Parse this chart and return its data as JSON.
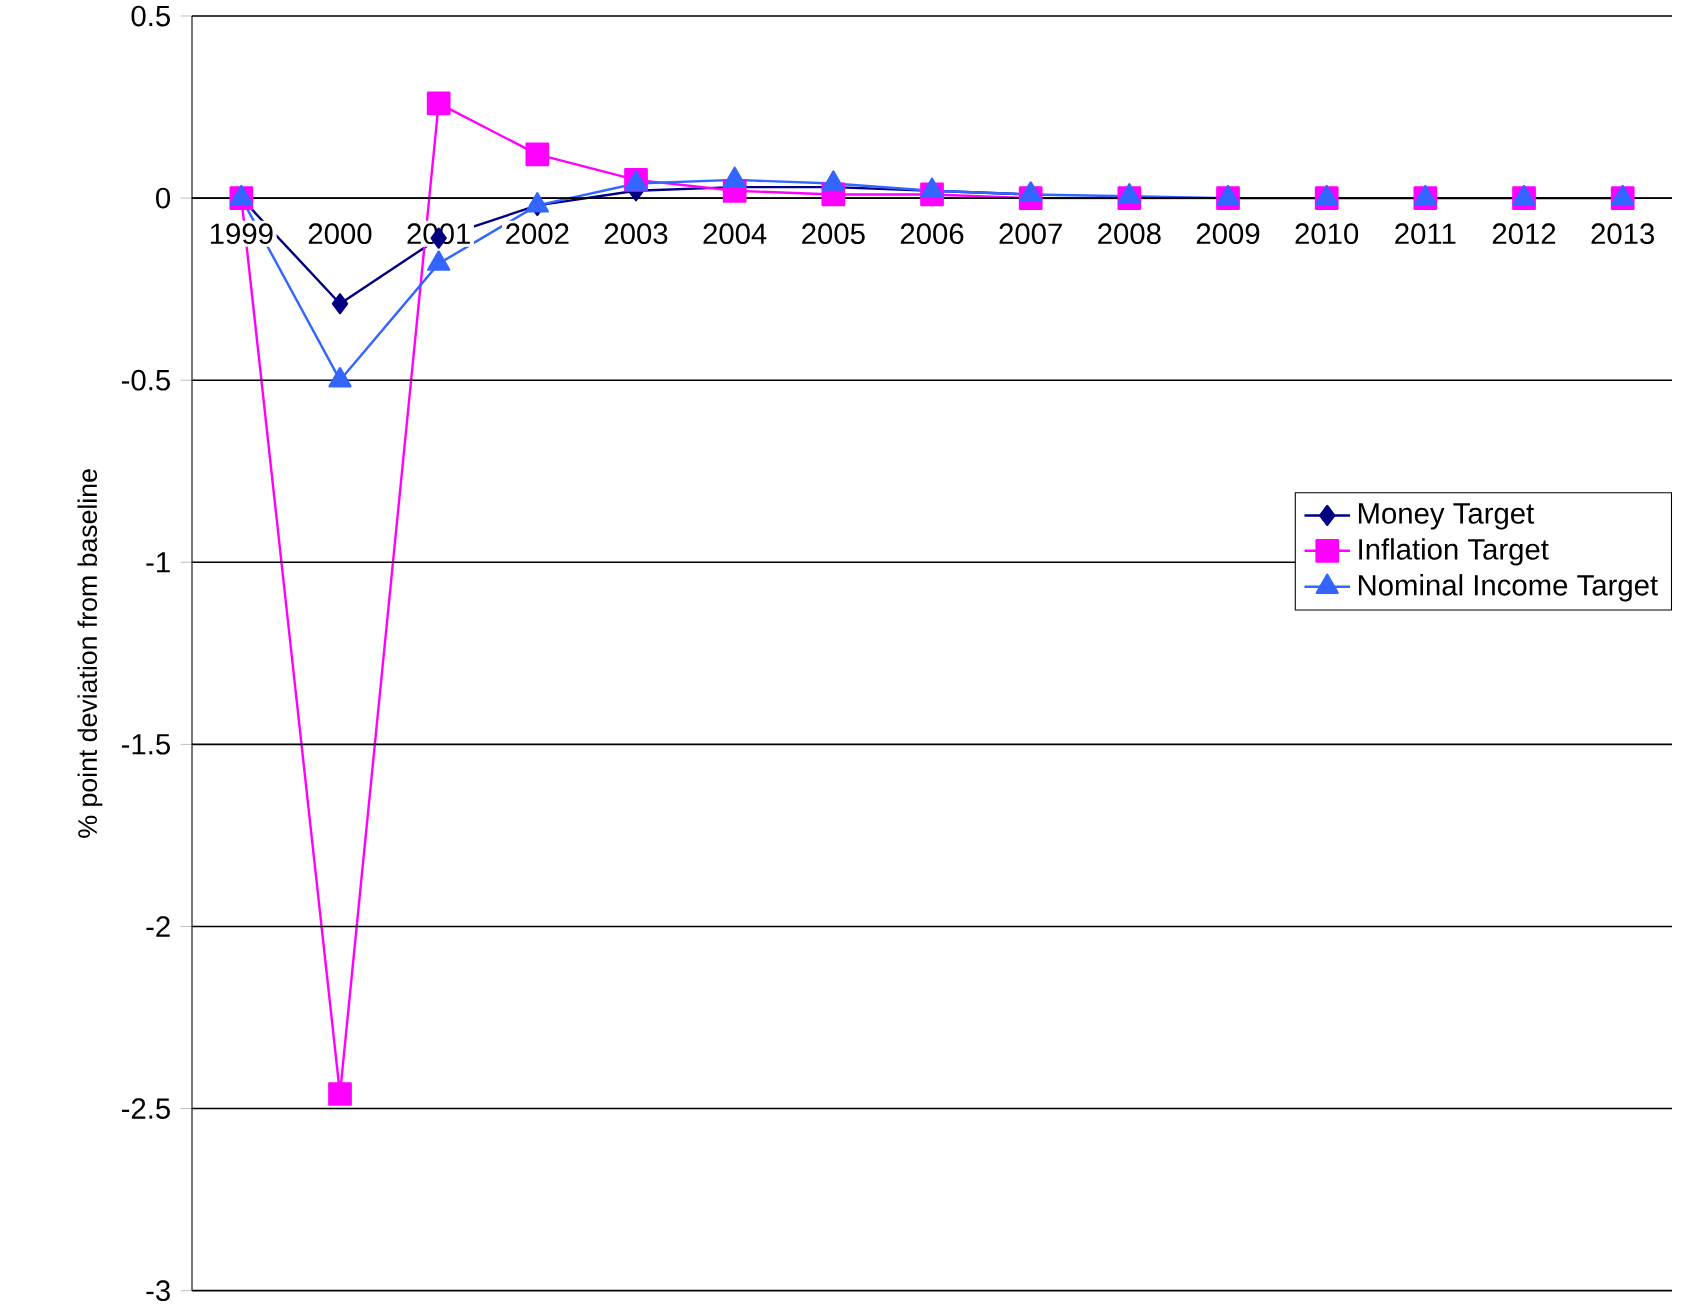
{
  "chart_data": {
    "type": "line",
    "ylabel": "% point deviation from baseline",
    "categories": [
      "1999",
      "2000",
      "2001",
      "2002",
      "2003",
      "2004",
      "2005",
      "2006",
      "2007",
      "2008",
      "2009",
      "2010",
      "2011",
      "2012",
      "2013"
    ],
    "series": [
      {
        "name": "Money Target",
        "color": "#000080",
        "marker": "diamond",
        "values": [
          0,
          -0.29,
          -0.11,
          -0.02,
          0.02,
          0.03,
          0.03,
          0.02,
          0.01,
          null,
          null,
          null,
          null,
          null,
          null
        ]
      },
      {
        "name": "Inflation Target",
        "color": "#ff00ff",
        "marker": "square",
        "values": [
          0,
          -2.46,
          0.26,
          0.12,
          0.05,
          0.02,
          0.01,
          0.01,
          0,
          0,
          0,
          0,
          0,
          0,
          0
        ]
      },
      {
        "name": "Nominal Income Target",
        "color": "#3366ff",
        "marker": "triangle",
        "values": [
          0,
          -0.5,
          -0.18,
          -0.02,
          0.04,
          0.05,
          0.04,
          0.02,
          0.01,
          0.005,
          0,
          0,
          0,
          0,
          0
        ]
      }
    ],
    "ylim": [
      -3,
      0.5
    ],
    "yticks": [
      -3,
      -2.5,
      -2,
      -1.5,
      -1,
      -0.5,
      0,
      0.5
    ],
    "grid": "y",
    "legend": "right"
  }
}
